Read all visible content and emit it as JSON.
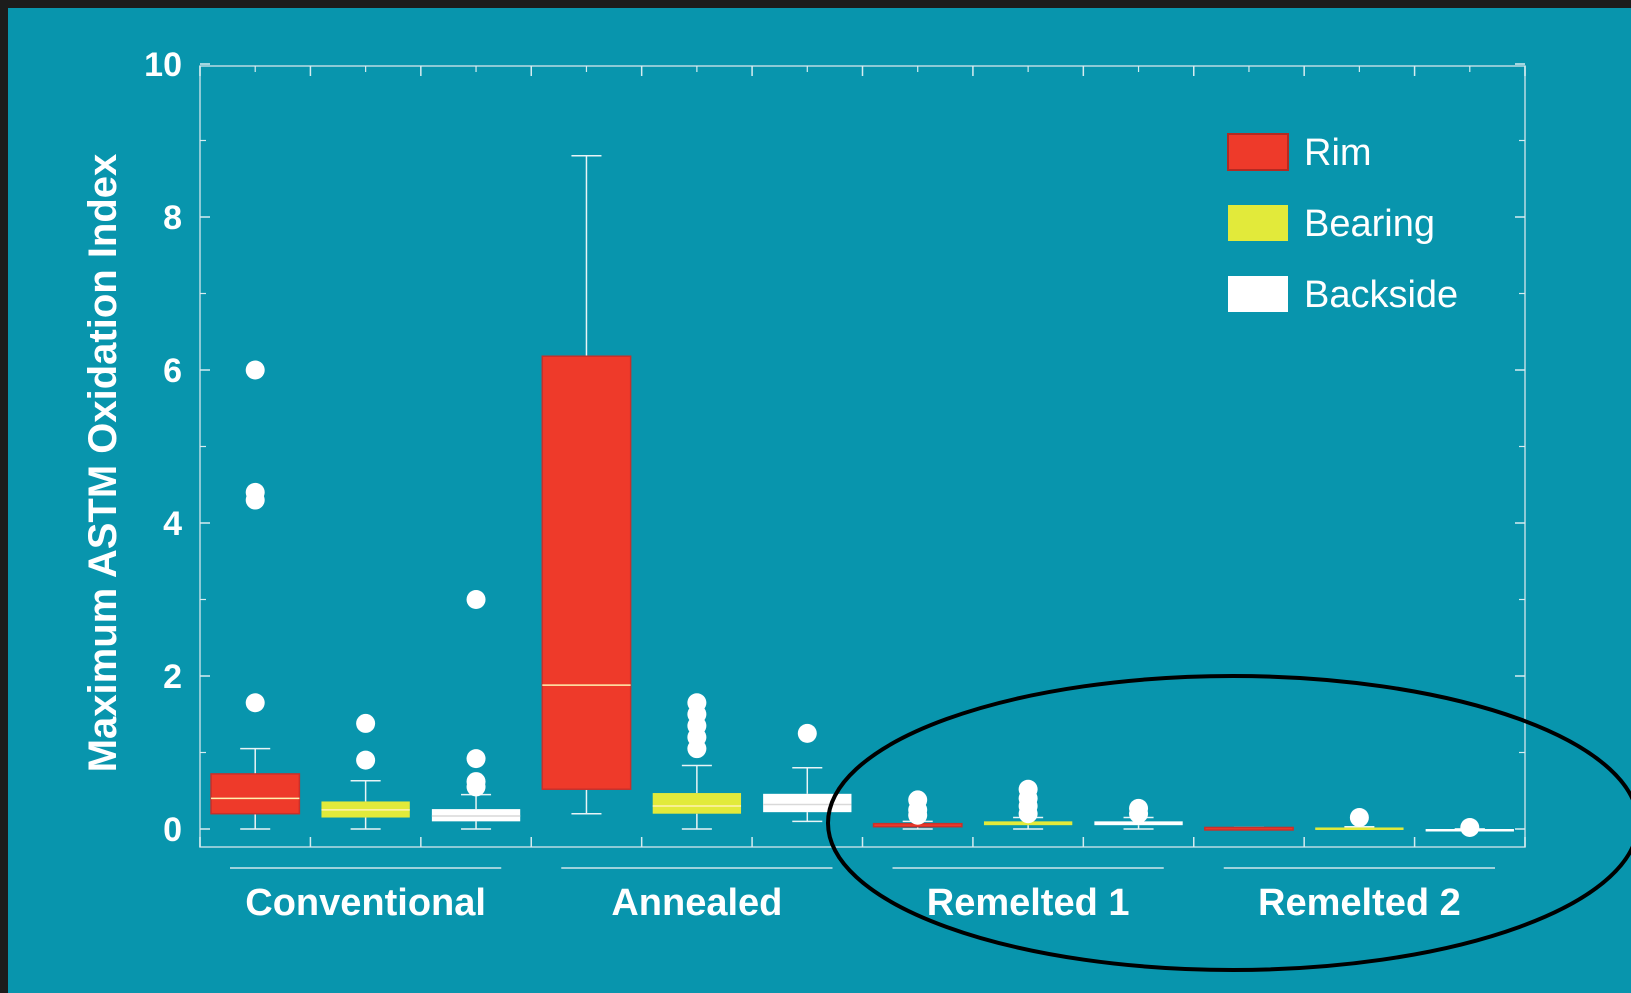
{
  "chart_data": {
    "type": "boxplot",
    "ylabel": "Maximum ASTM Oxidation Index",
    "ylim": [
      0,
      10
    ],
    "yticks": [
      0,
      2,
      4,
      6,
      8,
      10
    ],
    "grid": false,
    "legend_position": "top-right",
    "groups": [
      "Conventional",
      "Annealed",
      "Remelted 1",
      "Remelted 2"
    ],
    "series": [
      {
        "name": "Rim",
        "color": "#ee3a2a",
        "boxes": [
          {
            "group": "Conventional",
            "whisker_low": 0.0,
            "q1": 0.2,
            "median": 0.4,
            "q3": 0.72,
            "whisker_high": 1.05,
            "outliers": [
              1.65,
              4.3,
              4.4,
              6.0
            ]
          },
          {
            "group": "Annealed",
            "whisker_low": 0.2,
            "q1": 0.52,
            "median": 1.88,
            "q3": 6.18,
            "whisker_high": 8.8,
            "outliers": []
          },
          {
            "group": "Remelted 1",
            "whisker_low": 0.0,
            "q1": 0.03,
            "median": 0.05,
            "q3": 0.07,
            "whisker_high": 0.1,
            "outliers": [
              0.18,
              0.25,
              0.38
            ]
          },
          {
            "group": "Remelted 2",
            "whisker_low": 0.0,
            "q1": 0.0,
            "median": 0.01,
            "q3": 0.02,
            "whisker_high": 0.02,
            "outliers": []
          }
        ]
      },
      {
        "name": "Bearing",
        "color": "#e2ea3a",
        "boxes": [
          {
            "group": "Conventional",
            "whisker_low": 0.0,
            "q1": 0.15,
            "median": 0.25,
            "q3": 0.36,
            "whisker_high": 0.63,
            "outliers": [
              0.9,
              1.38
            ]
          },
          {
            "group": "Annealed",
            "whisker_low": 0.0,
            "q1": 0.2,
            "median": 0.3,
            "q3": 0.47,
            "whisker_high": 0.83,
            "outliers": [
              1.05,
              1.2,
              1.35,
              1.5,
              1.65
            ]
          },
          {
            "group": "Remelted 1",
            "whisker_low": 0.0,
            "q1": 0.05,
            "median": 0.07,
            "q3": 0.1,
            "whisker_high": 0.15,
            "outliers": [
              0.2,
              0.3,
              0.4,
              0.52
            ]
          },
          {
            "group": "Remelted 2",
            "whisker_low": 0.0,
            "q1": 0.0,
            "median": 0.01,
            "q3": 0.02,
            "whisker_high": 0.03,
            "outliers": [
              0.15
            ]
          }
        ]
      },
      {
        "name": "Backside",
        "color": "#ffffff",
        "boxes": [
          {
            "group": "Conventional",
            "whisker_low": 0.0,
            "q1": 0.1,
            "median": 0.17,
            "q3": 0.26,
            "whisker_high": 0.45,
            "outliers": [
              0.55,
              0.62,
              0.92,
              3.0
            ]
          },
          {
            "group": "Annealed",
            "whisker_low": 0.1,
            "q1": 0.22,
            "median": 0.32,
            "q3": 0.46,
            "whisker_high": 0.8,
            "outliers": [
              1.25
            ]
          },
          {
            "group": "Remelted 1",
            "whisker_low": 0.0,
            "q1": 0.05,
            "median": 0.07,
            "q3": 0.1,
            "whisker_high": 0.15,
            "outliers": [
              0.2,
              0.27
            ]
          },
          {
            "group": "Remelted 2",
            "whisker_low": 0.0,
            "q1": 0.0,
            "median": 0.0,
            "q3": 0.0,
            "whisker_high": 0.0,
            "outliers": [
              0.02
            ]
          }
        ]
      }
    ]
  },
  "annotation": {
    "shape": "ellipse",
    "color": "#000000",
    "encloses": [
      "Remelted 1",
      "Remelted 2"
    ]
  }
}
